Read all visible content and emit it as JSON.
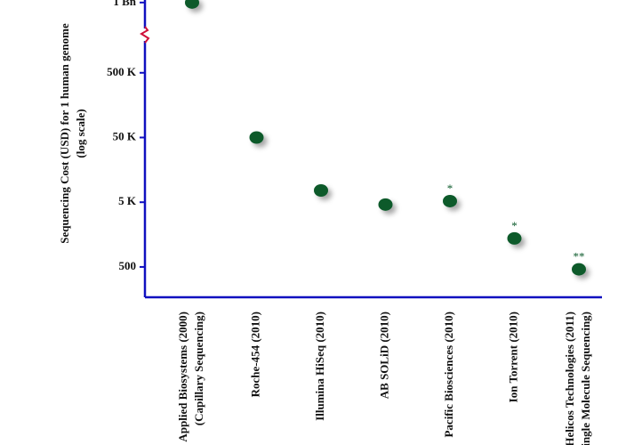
{
  "chart_data": {
    "type": "scatter",
    "y_label": [
      "Sequencing Cost (USD) for 1 human genome",
      "(log scale)"
    ],
    "categories": [
      [
        "Applied Biosystems (2000)",
        "(Capillary Sequencing)"
      ],
      [
        "Roche-454 (2010)"
      ],
      [
        "Illumina HiSeq (2010)"
      ],
      [
        "AB SOLiD (2010)"
      ],
      [
        "Pacific Biosciences (2010)"
      ],
      [
        "Ion Torrent (2010)"
      ],
      [
        "Helicos Technologies (2011)",
        "(Single Molecule Sequencing)"
      ]
    ],
    "values": [
      1000000000,
      50000,
      7600,
      4600,
      5200,
      1380,
      460
    ],
    "annotations": [
      null,
      null,
      null,
      null,
      "*",
      "*",
      "**"
    ],
    "log_scale": true,
    "ylim": [
      170,
      2000000
    ],
    "ylim_upper": [
      400000000,
      1100000000
    ],
    "axis_break": true,
    "yticks": [
      {
        "value": 500,
        "label": "500"
      },
      {
        "value": 5000,
        "label": "5 K"
      },
      {
        "value": 50000,
        "label": "50 K"
      },
      {
        "value": 500000,
        "label": "500 K"
      },
      {
        "value": 1000000000,
        "label": "1 Bn"
      }
    ],
    "color": "#0b5a2b",
    "axis_color": "#1010c0",
    "break_color": "#d0103a"
  }
}
